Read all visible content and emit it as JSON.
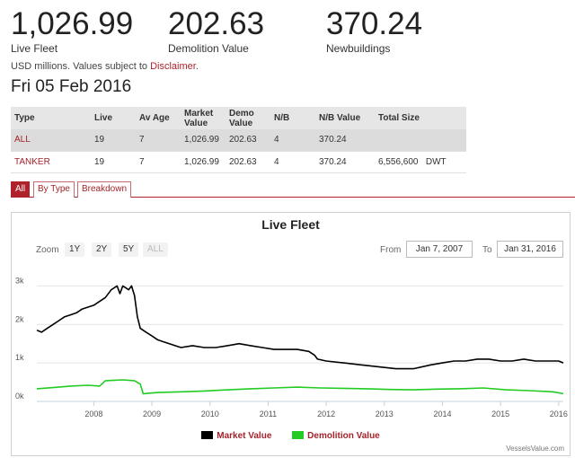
{
  "stats": [
    {
      "value": "1,026.99",
      "label": "Live Fleet"
    },
    {
      "value": "202.63",
      "label": "Demolition Value"
    },
    {
      "value": "370.24",
      "label": "Newbuildings"
    }
  ],
  "note": {
    "text": "USD millions. Values subject to ",
    "link": "Disclaimer",
    "end": "."
  },
  "date": "Fri 05 Feb 2016",
  "table": {
    "headers": {
      "type": "Type",
      "live": "Live",
      "age": "Av Age",
      "market": "Market Value",
      "demo": "Demo Value",
      "nb": "N/B",
      "nbval": "N/B Value",
      "size": "Total Size"
    },
    "rows": [
      {
        "type": "ALL",
        "live": "19",
        "age": "7",
        "market": "1,026.99",
        "demo": "202.63",
        "nb": "4",
        "nbval": "370.24",
        "size": "",
        "unit": ""
      },
      {
        "type": "TANKER",
        "live": "19",
        "age": "7",
        "market": "1,026.99",
        "demo": "202.63",
        "nb": "4",
        "nbval": "370.24",
        "size": "6,556,600",
        "unit": "DWT"
      }
    ]
  },
  "tabs": [
    "All",
    "By Type",
    "Breakdown"
  ],
  "chart": {
    "zoom_label": "Zoom",
    "zoom_buttons": [
      "1Y",
      "2Y",
      "5Y",
      "ALL"
    ],
    "from_label": "From",
    "from_value": "Jan 7, 2007",
    "to_label": "To",
    "to_value": "Jan 31, 2016",
    "credits": "VesselsValue.com",
    "colors": {
      "market": "#000000",
      "demolition": "#22cc22"
    }
  },
  "chart_data": {
    "type": "line",
    "title": "Live Fleet",
    "xlabel": "",
    "ylabel": "",
    "x_ticks": [
      "2008",
      "2009",
      "2010",
      "2011",
      "2012",
      "2013",
      "2014",
      "2015",
      "2016"
    ],
    "y_ticks": [
      "0k",
      "1k",
      "2k",
      "3k"
    ],
    "xlim": [
      2007.02,
      2016.08
    ],
    "ylim": [
      0,
      3500
    ],
    "legend_position": "bottom-center",
    "grid": "horizontal",
    "series": [
      {
        "name": "Market Value",
        "color": "#000000",
        "x": [
          2007.02,
          2007.1,
          2007.2,
          2007.3,
          2007.4,
          2007.5,
          2007.6,
          2007.7,
          2007.8,
          2007.9,
          2008.0,
          2008.1,
          2008.2,
          2008.3,
          2008.4,
          2008.45,
          2008.5,
          2008.55,
          2008.6,
          2008.65,
          2008.7,
          2008.75,
          2008.8,
          2008.9,
          2009.0,
          2009.1,
          2009.2,
          2009.3,
          2009.5,
          2009.7,
          2009.9,
          2010.1,
          2010.3,
          2010.5,
          2010.7,
          2010.9,
          2011.1,
          2011.3,
          2011.5,
          2011.7,
          2011.8,
          2011.85,
          2012.0,
          2012.3,
          2012.6,
          2012.9,
          2013.2,
          2013.5,
          2013.8,
          2014.0,
          2014.2,
          2014.4,
          2014.6,
          2014.8,
          2015.0,
          2015.2,
          2015.4,
          2015.6,
          2015.8,
          2016.0,
          2016.08
        ],
        "y": [
          1850,
          1800,
          1900,
          2000,
          2100,
          2200,
          2250,
          2300,
          2400,
          2450,
          2500,
          2600,
          2700,
          2900,
          3000,
          2800,
          3000,
          2950,
          2900,
          3000,
          2750,
          2200,
          1900,
          1800,
          1700,
          1600,
          1550,
          1500,
          1400,
          1450,
          1400,
          1400,
          1450,
          1500,
          1450,
          1400,
          1350,
          1350,
          1350,
          1300,
          1200,
          1100,
          1050,
          1000,
          950,
          900,
          850,
          850,
          950,
          1000,
          1050,
          1050,
          1100,
          1100,
          1050,
          1050,
          1100,
          1050,
          1050,
          1050,
          1000
        ]
      },
      {
        "name": "Demolition Value",
        "color": "#22cc22",
        "x": [
          2007.02,
          2007.3,
          2007.6,
          2007.9,
          2008.1,
          2008.2,
          2008.5,
          2008.7,
          2008.8,
          2008.85,
          2009.1,
          2009.5,
          2009.9,
          2010.3,
          2010.7,
          2011.1,
          2011.5,
          2011.9,
          2012.3,
          2012.7,
          2013.1,
          2013.5,
          2013.9,
          2014.3,
          2014.7,
          2015.1,
          2015.5,
          2015.9,
          2016.08
        ],
        "y": [
          330,
          360,
          400,
          420,
          400,
          540,
          560,
          540,
          450,
          200,
          230,
          250,
          270,
          300,
          330,
          350,
          370,
          350,
          340,
          330,
          310,
          300,
          320,
          330,
          350,
          300,
          280,
          250,
          200
        ]
      }
    ]
  }
}
